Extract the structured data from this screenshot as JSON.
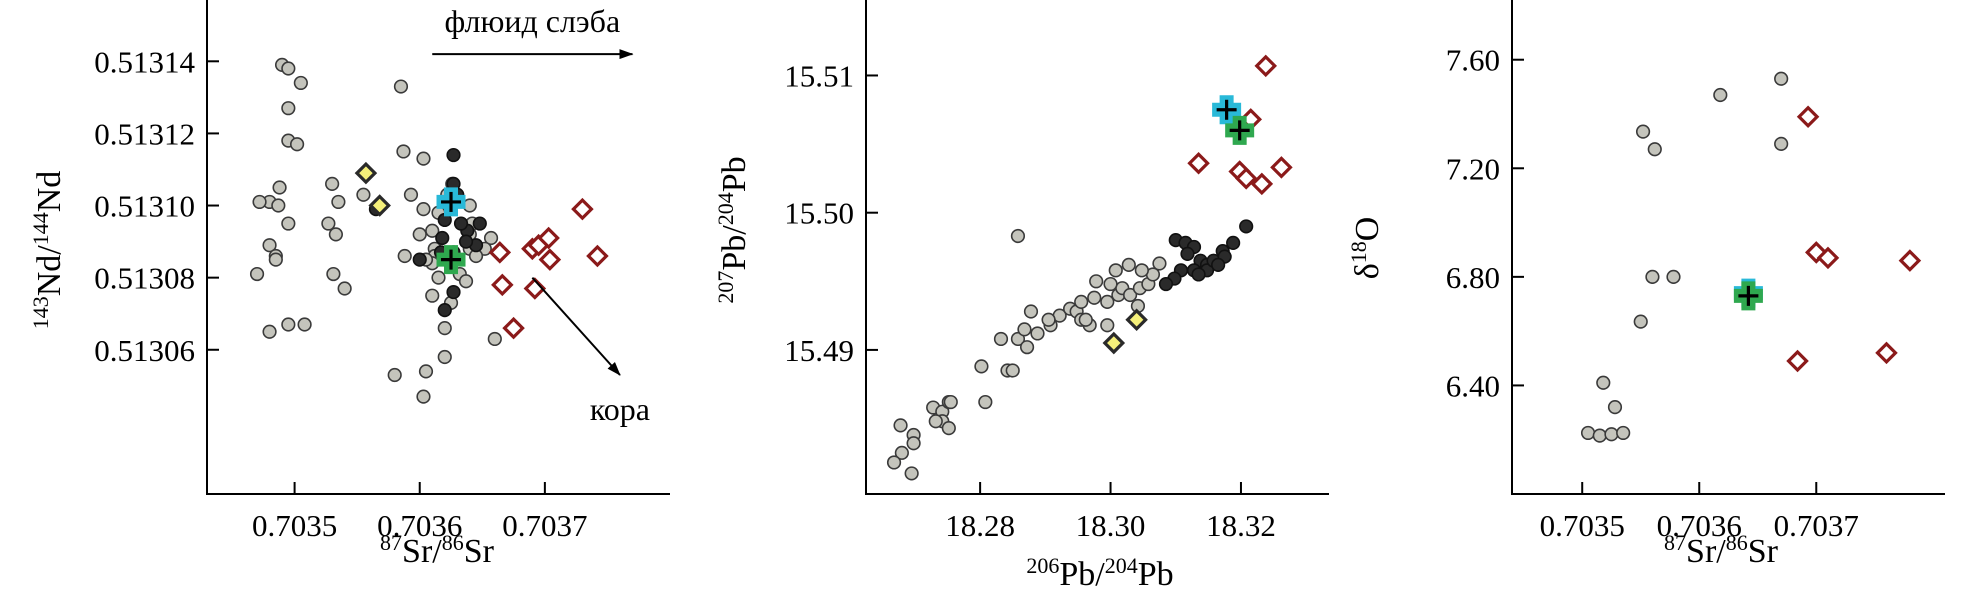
{
  "figure": "Sr-Nd, Pb-Pb and Sr-O isotope diagrams",
  "colors": {
    "grey_fill": "#c4c4bc",
    "black_fill": "#2a2a2a",
    "yellow_fill": "#f5f07a",
    "yellow_stroke": "#2a2a2a",
    "red_stroke": "#8b1a1a",
    "red_fill": "#ffffff",
    "cyan": "#29b9d8",
    "green": "#2fa84f",
    "axis": "#000000"
  },
  "chart_data": [
    {
      "type": "scatter",
      "id": "nd",
      "xlabel": {
        "base": "Sr",
        "sup1": "87",
        "mid": "Sr/",
        "sup2": "86",
        "tail": "Sr"
      },
      "ylabel": {
        "sup1": "143",
        "mid": "Nd/",
        "sup2": "144",
        "tail": "Nd"
      },
      "xlim": [
        0.70343,
        0.7038
      ],
      "ylim": [
        0.51302,
        0.513157
      ],
      "xticks": [
        0.7035,
        0.7036,
        0.7037
      ],
      "xtick_labels": [
        "0.7035",
        "0.7036",
        "0.7037"
      ],
      "yticks": [
        0.51306,
        0.51308,
        0.5131,
        0.51312,
        0.51314
      ],
      "ytick_labels": [
        "0.51306",
        "0.51308",
        "0.51310",
        "0.51312",
        "0.51314"
      ],
      "annotations": [
        {
          "text": "флюид слэба",
          "arrow_from": [
            0.70361,
            0.513142
          ],
          "arrow_to": [
            0.70377,
            0.513142
          ]
        },
        {
          "text": "кора",
          "arrow_from": [
            0.70369,
            0.51308
          ],
          "arrow_to": [
            0.70376,
            0.513053
          ]
        }
      ],
      "series": [
        {
          "name": "grey",
          "marker": "circle",
          "points": [
            [
              0.70349,
              0.513139
            ],
            [
              0.703495,
              0.513138
            ],
            [
              0.703505,
              0.513134
            ],
            [
              0.703495,
              0.513127
            ],
            [
              0.703495,
              0.513118
            ],
            [
              0.703502,
              0.513117
            ],
            [
              0.703585,
              0.513133
            ],
            [
              0.703587,
              0.513115
            ],
            [
              0.703603,
              0.513113
            ],
            [
              0.70348,
              0.513101
            ],
            [
              0.703472,
              0.513101
            ],
            [
              0.703487,
              0.5131
            ],
            [
              0.703488,
              0.513105
            ],
            [
              0.70353,
              0.513106
            ],
            [
              0.703535,
              0.513101
            ],
            [
              0.703527,
              0.513095
            ],
            [
              0.703495,
              0.513095
            ],
            [
              0.70348,
              0.513089
            ],
            [
              0.703485,
              0.513086
            ],
            [
              0.703485,
              0.513085
            ],
            [
              0.703533,
              0.513092
            ],
            [
              0.70347,
              0.513081
            ],
            [
              0.703531,
              0.513081
            ],
            [
              0.70354,
              0.513077
            ],
            [
              0.703495,
              0.513067
            ],
            [
              0.703508,
              0.513067
            ],
            [
              0.70348,
              0.513065
            ],
            [
              0.703555,
              0.513103
            ],
            [
              0.703593,
              0.513103
            ],
            [
              0.703603,
              0.513099
            ],
            [
              0.703615,
              0.513098
            ],
            [
              0.70361,
              0.513093
            ],
            [
              0.703612,
              0.513088
            ],
            [
              0.703612,
              0.513086
            ],
            [
              0.70361,
              0.513084
            ],
            [
              0.703605,
              0.513085
            ],
            [
              0.703626,
              0.513106
            ],
            [
              0.703622,
              0.513103
            ],
            [
              0.70364,
              0.5131
            ],
            [
              0.703642,
              0.513095
            ],
            [
              0.70364,
              0.513092
            ],
            [
              0.70364,
              0.513088
            ],
            [
              0.703627,
              0.513085
            ],
            [
              0.703632,
              0.513081
            ],
            [
              0.703637,
              0.513079
            ],
            [
              0.703625,
              0.513073
            ],
            [
              0.703657,
              0.513091
            ],
            [
              0.703652,
              0.513088
            ],
            [
              0.703645,
              0.513086
            ],
            [
              0.703615,
              0.51308
            ],
            [
              0.70362,
              0.513066
            ],
            [
              0.70362,
              0.513058
            ],
            [
              0.70358,
              0.513053
            ],
            [
              0.703605,
              0.513054
            ],
            [
              0.703603,
              0.513047
            ],
            [
              0.70366,
              0.513063
            ],
            [
              0.70361,
              0.513075
            ],
            [
              0.703588,
              0.513086
            ],
            [
              0.7036,
              0.513092
            ]
          ]
        },
        {
          "name": "black",
          "marker": "circle",
          "points": [
            [
              0.703627,
              0.513114
            ],
            [
              0.703627,
              0.513106
            ],
            [
              0.70363,
              0.513103
            ],
            [
              0.70362,
              0.513096
            ],
            [
              0.703618,
              0.513091
            ],
            [
              0.703638,
              0.513093
            ],
            [
              0.703645,
              0.513089
            ],
            [
              0.703633,
              0.513095
            ],
            [
              0.703617,
              0.513087
            ],
            [
              0.703627,
              0.513087
            ],
            [
              0.703648,
              0.513095
            ],
            [
              0.703565,
              0.513099
            ],
            [
              0.7036,
              0.513085
            ],
            [
              0.703627,
              0.513076
            ],
            [
              0.70362,
              0.513071
            ],
            [
              0.703637,
              0.51309
            ]
          ]
        },
        {
          "name": "yellow",
          "marker": "diamond",
          "points": [
            [
              0.703557,
              0.513109
            ],
            [
              0.703568,
              0.5131
            ]
          ]
        },
        {
          "name": "red",
          "marker": "diamond",
          "points": [
            [
              0.70373,
              0.513099
            ],
            [
              0.70369,
              0.513088
            ],
            [
              0.703695,
              0.513089
            ],
            [
              0.703703,
              0.513091
            ],
            [
              0.703664,
              0.513087
            ],
            [
              0.703704,
              0.513085
            ],
            [
              0.703742,
              0.513086
            ],
            [
              0.703666,
              0.513078
            ],
            [
              0.703692,
              0.513077
            ],
            [
              0.703675,
              0.513066
            ]
          ]
        },
        {
          "name": "cyan",
          "marker": "cross",
          "points": [
            [
              0.703625,
              0.513101
            ]
          ]
        },
        {
          "name": "green",
          "marker": "cross",
          "points": [
            [
              0.703625,
              0.513085
            ]
          ]
        }
      ]
    },
    {
      "type": "scatter",
      "id": "pb",
      "xlabel": {
        "sup1": "206",
        "mid": "Pb/",
        "sup2": "204",
        "tail": "Pb"
      },
      "ylabel": {
        "sup1": "207",
        "mid": "Pb/",
        "sup2": "204",
        "tail": "Pb"
      },
      "xlim": [
        18.2625,
        18.3335
      ],
      "ylim": [
        15.4795,
        15.5155
      ],
      "xticks": [
        18.28,
        18.3,
        18.32
      ],
      "xtick_labels": [
        "18.28",
        "18.30",
        "18.32"
      ],
      "yticks": [
        15.49,
        15.5,
        15.51
      ],
      "ytick_labels": [
        "15.49",
        "15.50",
        "15.51"
      ],
      "series": [
        {
          "name": "grey",
          "marker": "circle",
          "points": [
            [
              18.2678,
              15.4845
            ],
            [
              18.2698,
              15.4838
            ],
            [
              18.2698,
              15.4832
            ],
            [
              18.268,
              15.4825
            ],
            [
              18.2668,
              15.4818
            ],
            [
              18.2695,
              15.481
            ],
            [
              18.2728,
              15.4858
            ],
            [
              18.2742,
              15.4855
            ],
            [
              18.2752,
              15.4862
            ],
            [
              18.2742,
              15.4848
            ],
            [
              18.2752,
              15.4843
            ],
            [
              18.2732,
              15.4848
            ],
            [
              18.2808,
              15.4862
            ],
            [
              18.2802,
              15.4888
            ],
            [
              18.2842,
              15.4885
            ],
            [
              18.285,
              15.4885
            ],
            [
              18.2832,
              15.4908
            ],
            [
              18.2858,
              15.4908
            ],
            [
              18.2872,
              15.4902
            ],
            [
              18.2868,
              15.4915
            ],
            [
              18.2888,
              15.4912
            ],
            [
              18.2908,
              15.4918
            ],
            [
              18.2922,
              15.4925
            ],
            [
              18.2938,
              15.493
            ],
            [
              18.2948,
              15.4928
            ],
            [
              18.2955,
              15.4935
            ],
            [
              18.2955,
              15.4922
            ],
            [
              18.2968,
              15.4918
            ],
            [
              18.2878,
              15.4928
            ],
            [
              18.2905,
              15.4922
            ],
            [
              18.2962,
              15.4922
            ],
            [
              18.2975,
              15.4938
            ],
            [
              18.2995,
              15.4935
            ],
            [
              18.3012,
              15.494
            ],
            [
              18.3018,
              15.4945
            ],
            [
              18.303,
              15.494
            ],
            [
              18.3042,
              15.4932
            ],
            [
              18.3045,
              15.4945
            ],
            [
              18.3058,
              15.4948
            ],
            [
              18.3065,
              15.4955
            ],
            [
              18.3075,
              15.4963
            ],
            [
              18.3008,
              15.4958
            ],
            [
              18.3028,
              15.4962
            ],
            [
              18.3,
              15.4948
            ],
            [
              18.2978,
              15.495
            ],
            [
              18.2858,
              15.4983
            ],
            [
              18.2755,
              15.4862
            ],
            [
              18.2995,
              15.4918
            ],
            [
              18.3048,
              15.4958
            ]
          ]
        },
        {
          "name": "black",
          "marker": "circle",
          "points": [
            [
              18.31,
              15.498
            ],
            [
              18.3115,
              15.4978
            ],
            [
              18.3128,
              15.4975
            ],
            [
              18.3118,
              15.497
            ],
            [
              18.3138,
              15.4965
            ],
            [
              18.3148,
              15.4962
            ],
            [
              18.3148,
              15.4958
            ],
            [
              18.3158,
              15.4965
            ],
            [
              18.3172,
              15.4972
            ],
            [
              18.3188,
              15.4978
            ],
            [
              18.3175,
              15.4968
            ],
            [
              18.3165,
              15.4962
            ],
            [
              18.3208,
              15.499
            ],
            [
              18.3108,
              15.4958
            ],
            [
              18.3098,
              15.4952
            ],
            [
              18.3085,
              15.4948
            ],
            [
              18.3128,
              15.4958
            ],
            [
              18.3135,
              15.4955
            ]
          ]
        },
        {
          "name": "yellow",
          "marker": "diamond",
          "points": [
            [
              18.3005,
              15.4905
            ],
            [
              18.304,
              15.4922
            ]
          ]
        },
        {
          "name": "red",
          "marker": "diamond",
          "points": [
            [
              18.3238,
              15.5107
            ],
            [
              18.3215,
              15.5068
            ],
            [
              18.3135,
              15.5036
            ],
            [
              18.3198,
              15.503
            ],
            [
              18.3208,
              15.5025
            ],
            [
              18.3232,
              15.5021
            ],
            [
              18.3262,
              15.5033
            ]
          ]
        },
        {
          "name": "cyan",
          "marker": "cross",
          "points": [
            [
              18.3178,
              15.5075
            ]
          ]
        },
        {
          "name": "green",
          "marker": "cross",
          "points": [
            [
              18.3198,
              15.506
            ]
          ]
        }
      ]
    },
    {
      "type": "scatter",
      "id": "o",
      "xlabel": {
        "sup1": "87",
        "mid": "Sr/",
        "sup2": "86",
        "tail": "Sr"
      },
      "ylabel": {
        "prefix": "δ",
        "sup1": "18",
        "tail": "O"
      },
      "xlim": [
        0.70344,
        0.70381
      ],
      "ylim": [
        6.0,
        7.82
      ],
      "xticks": [
        0.7035,
        0.7036,
        0.7037
      ],
      "xtick_labels": [
        "0.7035",
        "0.7036",
        "0.7037"
      ],
      "yticks": [
        6.4,
        6.8,
        7.2,
        7.6
      ],
      "ytick_labels": [
        "6.40",
        "6.80",
        "7.20",
        "7.60"
      ],
      "series": [
        {
          "name": "grey",
          "marker": "circle",
          "points": [
            [
              0.703505,
              6.225
            ],
            [
              0.703515,
              6.215
            ],
            [
              0.703525,
              6.22
            ],
            [
              0.703518,
              6.41
            ],
            [
              0.703528,
              6.32
            ],
            [
              0.703535,
              6.225
            ],
            [
              0.70355,
              6.635
            ],
            [
              0.70356,
              6.8
            ],
            [
              0.703578,
              6.8
            ],
            [
              0.703552,
              7.335
            ],
            [
              0.703562,
              7.27
            ],
            [
              0.703618,
              7.47
            ],
            [
              0.70367,
              7.53
            ],
            [
              0.70367,
              7.29
            ]
          ]
        },
        {
          "name": "black",
          "marker": "circle",
          "points": []
        },
        {
          "name": "yellow",
          "marker": "diamond",
          "points": []
        },
        {
          "name": "red",
          "marker": "diamond",
          "points": [
            [
              0.703693,
              7.39
            ],
            [
              0.7037,
              6.89
            ],
            [
              0.70371,
              6.87
            ],
            [
              0.70378,
              6.86
            ],
            [
              0.703684,
              6.49
            ],
            [
              0.70376,
              6.52
            ]
          ]
        },
        {
          "name": "cyan",
          "marker": "cross",
          "points": [
            [
              0.703642,
              6.74
            ]
          ]
        },
        {
          "name": "green",
          "marker": "cross",
          "points": [
            [
              0.703642,
              6.73
            ]
          ]
        }
      ]
    }
  ]
}
